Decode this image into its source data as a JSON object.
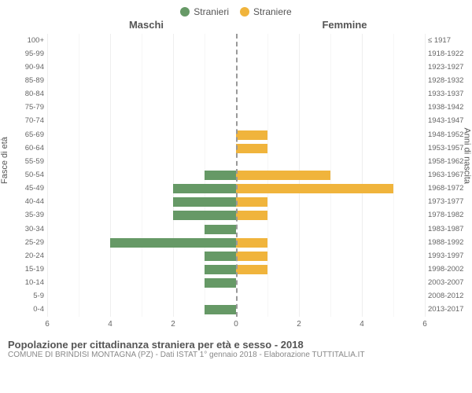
{
  "legend": {
    "m": {
      "label": "Stranieri",
      "color": "#669966"
    },
    "f": {
      "label": "Straniere",
      "color": "#f0b43c"
    }
  },
  "panel_titles": {
    "left": "Maschi",
    "right": "Femmine"
  },
  "axis_titles": {
    "left": "Fasce di età",
    "right": "Anni di nascita"
  },
  "grid_color": "#eeeeee",
  "zero_line_color": "#999999",
  "xlim": 6,
  "xtick_step": 2,
  "xticks": [
    6,
    4,
    2,
    0,
    2,
    4,
    6
  ],
  "rows": [
    {
      "age": "100+",
      "birth": "≤ 1917",
      "m": 0,
      "f": 0
    },
    {
      "age": "95-99",
      "birth": "1918-1922",
      "m": 0,
      "f": 0
    },
    {
      "age": "90-94",
      "birth": "1923-1927",
      "m": 0,
      "f": 0
    },
    {
      "age": "85-89",
      "birth": "1928-1932",
      "m": 0,
      "f": 0
    },
    {
      "age": "80-84",
      "birth": "1933-1937",
      "m": 0,
      "f": 0
    },
    {
      "age": "75-79",
      "birth": "1938-1942",
      "m": 0,
      "f": 0
    },
    {
      "age": "70-74",
      "birth": "1943-1947",
      "m": 0,
      "f": 0
    },
    {
      "age": "65-69",
      "birth": "1948-1952",
      "m": 0,
      "f": 1
    },
    {
      "age": "60-64",
      "birth": "1953-1957",
      "m": 0,
      "f": 1
    },
    {
      "age": "55-59",
      "birth": "1958-1962",
      "m": 0,
      "f": 0
    },
    {
      "age": "50-54",
      "birth": "1963-1967",
      "m": 1,
      "f": 3
    },
    {
      "age": "45-49",
      "birth": "1968-1972",
      "m": 2,
      "f": 5
    },
    {
      "age": "40-44",
      "birth": "1973-1977",
      "m": 2,
      "f": 1
    },
    {
      "age": "35-39",
      "birth": "1978-1982",
      "m": 2,
      "f": 1
    },
    {
      "age": "30-34",
      "birth": "1983-1987",
      "m": 1,
      "f": 0
    },
    {
      "age": "25-29",
      "birth": "1988-1992",
      "m": 4,
      "f": 1
    },
    {
      "age": "20-24",
      "birth": "1993-1997",
      "m": 1,
      "f": 1
    },
    {
      "age": "15-19",
      "birth": "1998-2002",
      "m": 1,
      "f": 1
    },
    {
      "age": "10-14",
      "birth": "2003-2007",
      "m": 1,
      "f": 0
    },
    {
      "age": "5-9",
      "birth": "2008-2012",
      "m": 0,
      "f": 0
    },
    {
      "age": "0-4",
      "birth": "2013-2017",
      "m": 1,
      "f": 0
    }
  ],
  "footer": {
    "title": "Popolazione per cittadinanza straniera per età e sesso - 2018",
    "subtitle": "COMUNE DI BRINDISI MONTAGNA (PZ) - Dati ISTAT 1° gennaio 2018 - Elaborazione TUTTITALIA.IT"
  }
}
